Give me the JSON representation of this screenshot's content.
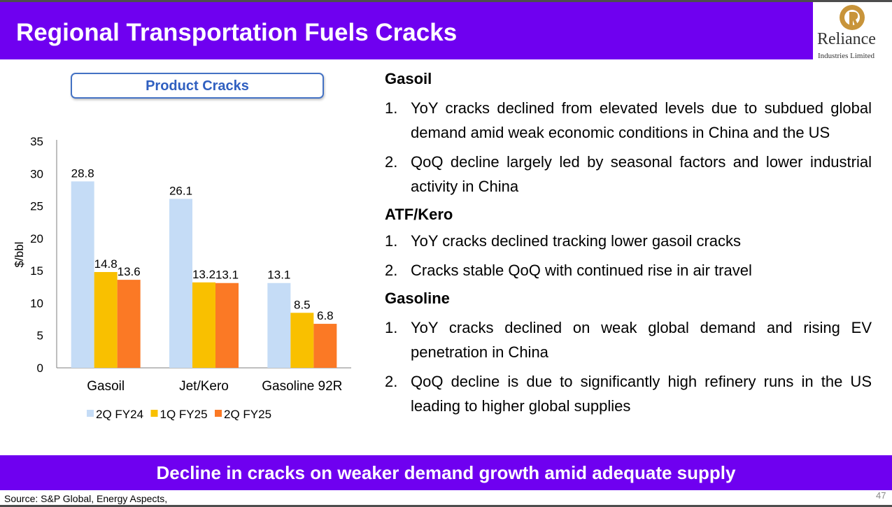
{
  "header": {
    "title": "Regional Transportation Fuels Cracks"
  },
  "logo": {
    "name": "Reliance",
    "subtitle": "Industries Limited",
    "color": "#c8943a"
  },
  "chart_title": "Product Cracks",
  "chart_data": {
    "type": "bar",
    "categories": [
      "Gasoil",
      "Jet/Kero",
      "Gasoline 92R"
    ],
    "series": [
      {
        "name": "2Q FY24",
        "values": [
          28.8,
          26.1,
          13.1
        ],
        "color": "#c5dcf6"
      },
      {
        "name": "1Q FY25",
        "values": [
          14.8,
          13.2,
          8.5
        ],
        "color": "#f9c000"
      },
      {
        "name": "2Q FY25",
        "values": [
          13.6,
          13.1,
          6.8
        ],
        "color": "#fb7925"
      }
    ],
    "ylabel": "$/bbl",
    "ylim": [
      0,
      35
    ],
    "yticks": [
      0,
      5,
      10,
      15,
      20,
      25,
      30,
      35
    ],
    "grid": false,
    "legend": "bottom"
  },
  "sections": [
    {
      "heading": "Gasoil",
      "items": [
        {
          "num": "1.",
          "text": "YoY cracks declined from elevated levels due to subdued global demand amid weak economic conditions in China and the US"
        },
        {
          "num": "2.",
          "text": "QoQ decline largely led by seasonal factors and lower industrial activity in China"
        }
      ]
    },
    {
      "heading": "ATF/Kero",
      "items": [
        {
          "num": "1.",
          "text": "YoY cracks declined tracking lower gasoil cracks"
        },
        {
          "num": "2.",
          "text": "Cracks stable QoQ with continued rise in air travel"
        }
      ]
    },
    {
      "heading": "Gasoline",
      "items": [
        {
          "num": "1.",
          "text": "YoY cracks declined on weak global demand and rising EV penetration in China"
        },
        {
          "num": "2.",
          "text": "QoQ decline is due to significantly high refinery runs in the US leading to higher global supplies"
        }
      ]
    }
  ],
  "banner": "Decline in cracks on weaker demand growth amid adequate supply",
  "footer": {
    "source": "Source: S&P Global, Energy Aspects,",
    "page": "47"
  },
  "colors": {
    "accent": "#6f00f0",
    "chart_title": "#2f5fc0"
  }
}
